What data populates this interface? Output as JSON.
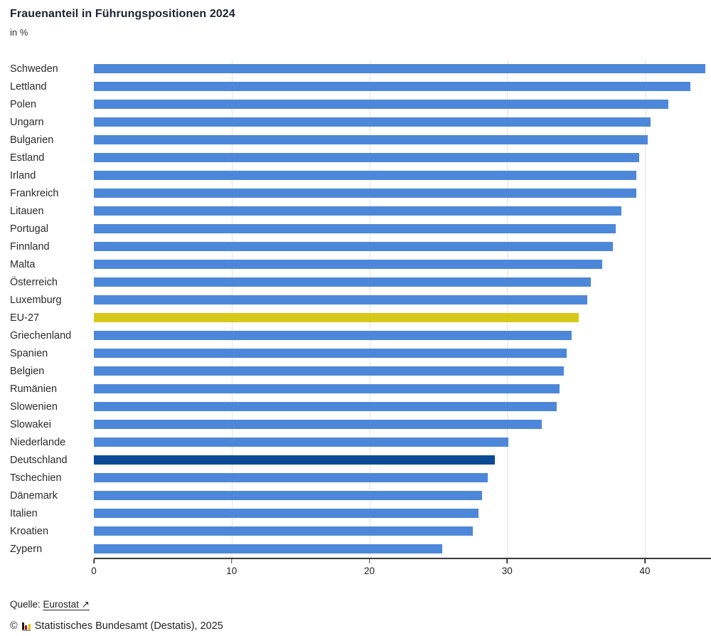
{
  "header": {
    "title": "Frauenanteil in Führungspositionen 2024",
    "subtitle": "in %"
  },
  "chart_data": {
    "type": "bar",
    "orientation": "horizontal",
    "title": "Frauenanteil in Führungspositionen 2024",
    "xlabel": "",
    "ylabel": "in %",
    "categories": [
      "Schweden",
      "Lettland",
      "Polen",
      "Ungarn",
      "Bulgarien",
      "Estland",
      "Irland",
      "Frankreich",
      "Litauen",
      "Portugal",
      "Finnland",
      "Malta",
      "Österreich",
      "Luxemburg",
      "EU-27",
      "Griechenland",
      "Spanien",
      "Belgien",
      "Rumänien",
      "Slowenien",
      "Slowakei",
      "Niederlande",
      "Deutschland",
      "Tschechien",
      "Dänemark",
      "Italien",
      "Kroatien",
      "Zypern"
    ],
    "values": [
      44.4,
      43.3,
      41.7,
      40.4,
      40.2,
      39.6,
      39.4,
      39.4,
      38.3,
      37.9,
      37.7,
      36.9,
      36.1,
      35.8,
      35.2,
      34.7,
      34.3,
      34.1,
      33.8,
      33.6,
      32.5,
      30.1,
      29.1,
      28.6,
      28.2,
      27.9,
      27.5,
      25.3
    ],
    "xlim": [
      0,
      44.8
    ],
    "xticks": [
      0,
      10,
      20,
      30,
      40
    ],
    "grid": true,
    "legend_position": "none",
    "bar_colors": {
      "default": "#4d87d9",
      "EU-27": "#d7c91a",
      "Deutschland": "#0d4a96"
    }
  },
  "footer": {
    "source_label": "Quelle:",
    "source_link_text": "Eurostat",
    "external_link_arrow": "↗",
    "copyright_symbol": "©",
    "copyright_text": "Statistisches Bundesamt (Destatis), 2025"
  },
  "colors": {
    "axis": "#3a3a3a",
    "gridline": "#e4e4e4",
    "title": "#1b2430",
    "bar_blue": "#4d87d9",
    "bar_yellow": "#d7c91a",
    "bar_dark_blue": "#0d4a96"
  }
}
